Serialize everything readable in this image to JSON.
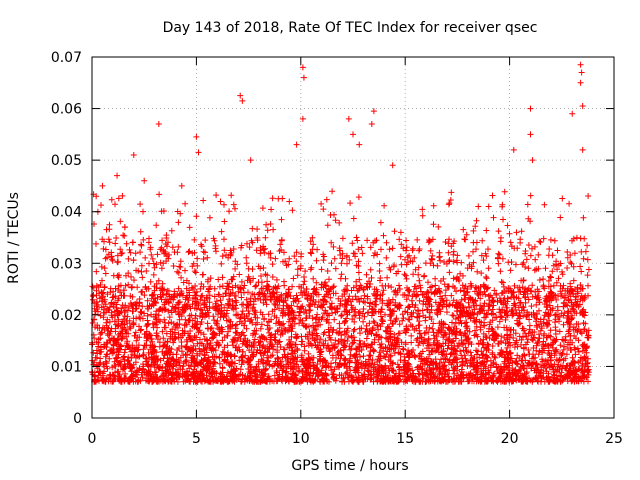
{
  "chart_data": {
    "type": "scatter",
    "title": "Day 143 of 2018, Rate Of TEC Index for receiver qsec",
    "xlabel": "GPS time / hours",
    "ylabel": "ROTI / TECUs",
    "xlim": [
      0,
      25
    ],
    "ylim": [
      0,
      0.07
    ],
    "grid": true,
    "marker": "+",
    "marker_color": "#ff0000",
    "x_ticks": [
      "0",
      "5",
      "10",
      "15",
      "20",
      "25"
    ],
    "y_ticks": [
      "0",
      "0.01",
      "0.02",
      "0.03",
      "0.04",
      "0.05",
      "0.06",
      "0.07"
    ],
    "x_tick_values": [
      0,
      5,
      10,
      15,
      20,
      25
    ],
    "y_tick_values": [
      0,
      0.01,
      0.02,
      0.03,
      0.04,
      0.05,
      0.06,
      0.07
    ],
    "series": [
      {
        "name": "ROTI",
        "x_range": [
          0,
          23.8
        ],
        "typical_band": [
          0.005,
          0.03
        ],
        "note": "Dense cloud of many thousands of points; notable outliers listed below",
        "outliers": [
          {
            "x": 0.2,
            "y": 0.043
          },
          {
            "x": 0.5,
            "y": 0.045
          },
          {
            "x": 1.2,
            "y": 0.047
          },
          {
            "x": 2.0,
            "y": 0.051
          },
          {
            "x": 2.5,
            "y": 0.046
          },
          {
            "x": 3.2,
            "y": 0.057
          },
          {
            "x": 4.3,
            "y": 0.045
          },
          {
            "x": 5.0,
            "y": 0.0545
          },
          {
            "x": 5.1,
            "y": 0.0515
          },
          {
            "x": 7.1,
            "y": 0.0625
          },
          {
            "x": 7.2,
            "y": 0.0615
          },
          {
            "x": 7.6,
            "y": 0.05
          },
          {
            "x": 9.8,
            "y": 0.053
          },
          {
            "x": 10.1,
            "y": 0.068
          },
          {
            "x": 10.15,
            "y": 0.066
          },
          {
            "x": 10.1,
            "y": 0.058
          },
          {
            "x": 12.3,
            "y": 0.058
          },
          {
            "x": 12.5,
            "y": 0.055
          },
          {
            "x": 12.8,
            "y": 0.053
          },
          {
            "x": 13.5,
            "y": 0.0595
          },
          {
            "x": 13.4,
            "y": 0.057
          },
          {
            "x": 14.4,
            "y": 0.049
          },
          {
            "x": 18.5,
            "y": 0.041
          },
          {
            "x": 19.0,
            "y": 0.041
          },
          {
            "x": 20.2,
            "y": 0.052
          },
          {
            "x": 21.0,
            "y": 0.06
          },
          {
            "x": 21.0,
            "y": 0.055
          },
          {
            "x": 21.1,
            "y": 0.05
          },
          {
            "x": 23.0,
            "y": 0.059
          },
          {
            "x": 23.4,
            "y": 0.0685
          },
          {
            "x": 23.45,
            "y": 0.067
          },
          {
            "x": 23.4,
            "y": 0.065
          },
          {
            "x": 23.5,
            "y": 0.0605
          },
          {
            "x": 23.5,
            "y": 0.052
          }
        ]
      }
    ]
  }
}
